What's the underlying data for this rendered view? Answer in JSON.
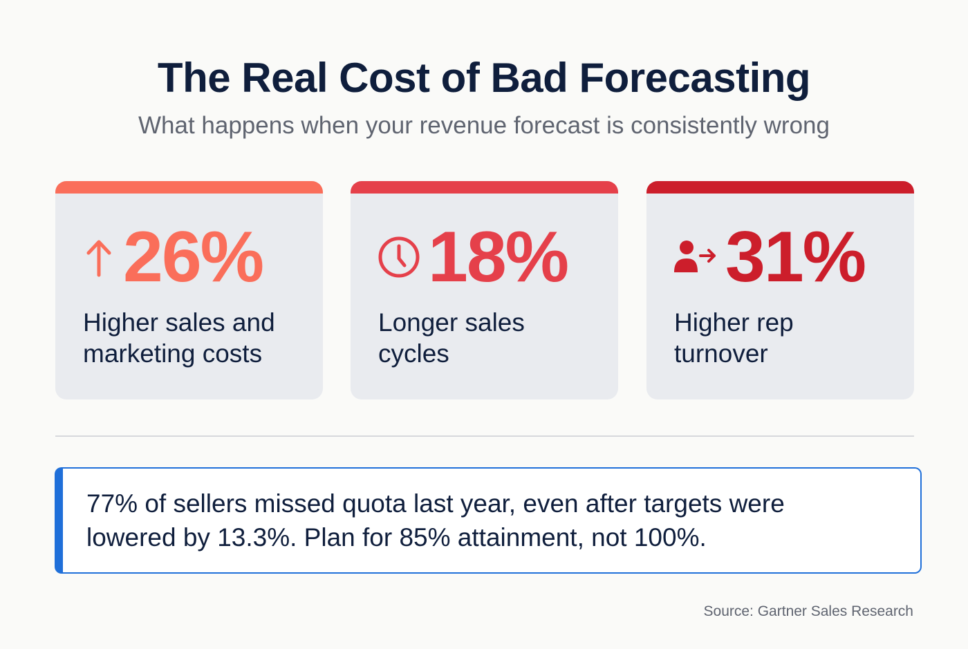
{
  "header": {
    "title": "The Real Cost of Bad Forecasting",
    "subtitle": "What happens when your revenue forecast is consistently wrong"
  },
  "cards": [
    {
      "value": "26%",
      "label_line1": "Higher sales and",
      "label_line2": "marketing costs",
      "icon": "arrow-up-icon",
      "color": "#fa6e5a"
    },
    {
      "value": "18%",
      "label_line1": "Longer sales",
      "label_line2": "cycles",
      "icon": "clock-icon",
      "color": "#e5404a"
    },
    {
      "value": "31%",
      "label_line1": "Higher rep",
      "label_line2": "turnover",
      "icon": "user-leaving-icon",
      "color": "#cc1e2b"
    }
  ],
  "callout": {
    "line1": "77% of sellers missed quota last year, even after targets were",
    "line2": "lowered by 13.3%. Plan for 85% attainment, not 100%.",
    "accent": "#1f6fd9"
  },
  "source": "Source: Gartner Sales Research"
}
